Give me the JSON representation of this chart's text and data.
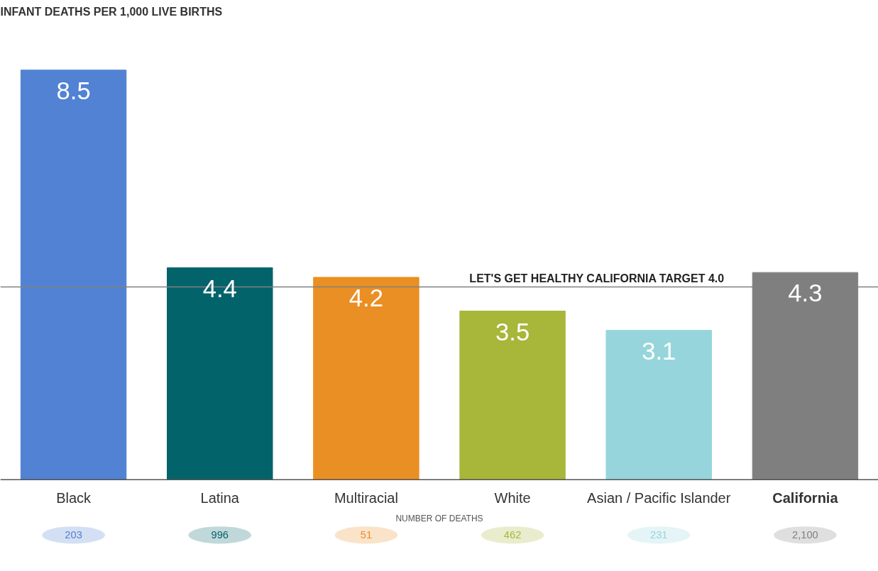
{
  "chart_data": {
    "type": "bar",
    "title": "INFANT DEATHS PER 1,000 LIVE BIRTHS",
    "categories": [
      "Black",
      "Latina",
      "Multiracial",
      "White",
      "Asian / Pacific Islander",
      "California"
    ],
    "values": [
      8.5,
      4.4,
      4.2,
      3.5,
      3.1,
      4.3
    ],
    "colors": [
      "#5182d3",
      "#03636b",
      "#ea8f23",
      "#a8b639",
      "#96d5db",
      "#7f7f7f"
    ],
    "data_labels": true,
    "ref_lines": [
      {
        "axis": "y",
        "value": 4.0,
        "label": "LET'S GET HEALTHY CALIFORNIA TARGET 4.0",
        "color": "#808080"
      }
    ],
    "annotations": [
      "NUMBER OF DEATHS",
      "203",
      "996",
      "51",
      "462",
      "231",
      "2,100"
    ],
    "grid": false
  }
}
